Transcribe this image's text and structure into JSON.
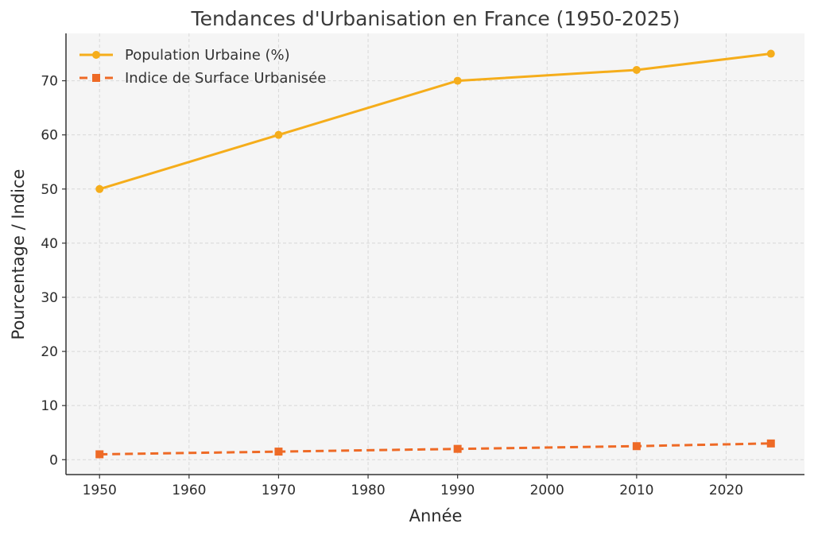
{
  "chart_data": {
    "type": "line",
    "title": "Tendances d'Urbanisation en France (1950-2025)",
    "xlabel": "Année",
    "ylabel": "Pourcentage / Indice",
    "xlim": [
      1946.25,
      2028.75
    ],
    "ylim": [
      -2.75,
      78.75
    ],
    "x_ticks": [
      1950,
      1960,
      1970,
      1980,
      1990,
      2000,
      2010,
      2020
    ],
    "y_ticks": [
      0,
      10,
      20,
      30,
      40,
      50,
      60,
      70
    ],
    "grid": true,
    "legend_position": "top-left",
    "x": [
      1950,
      1970,
      1990,
      2010,
      2025
    ],
    "series": [
      {
        "name": "Population Urbaine (%)",
        "values": [
          50,
          60,
          70,
          72,
          75
        ],
        "color": "#f5ad1b",
        "marker": "circle",
        "line_style": "solid"
      },
      {
        "name": "Indice de Surface Urbanisée",
        "values": [
          1,
          1.5,
          2,
          2.5,
          3
        ],
        "color": "#ee6a26",
        "marker": "square",
        "line_style": "dashed"
      }
    ]
  },
  "colors": {
    "background": "#ffffff",
    "plot_background": "#f5f5f5",
    "grid": "#d8d8d8",
    "axis": "#333333"
  }
}
